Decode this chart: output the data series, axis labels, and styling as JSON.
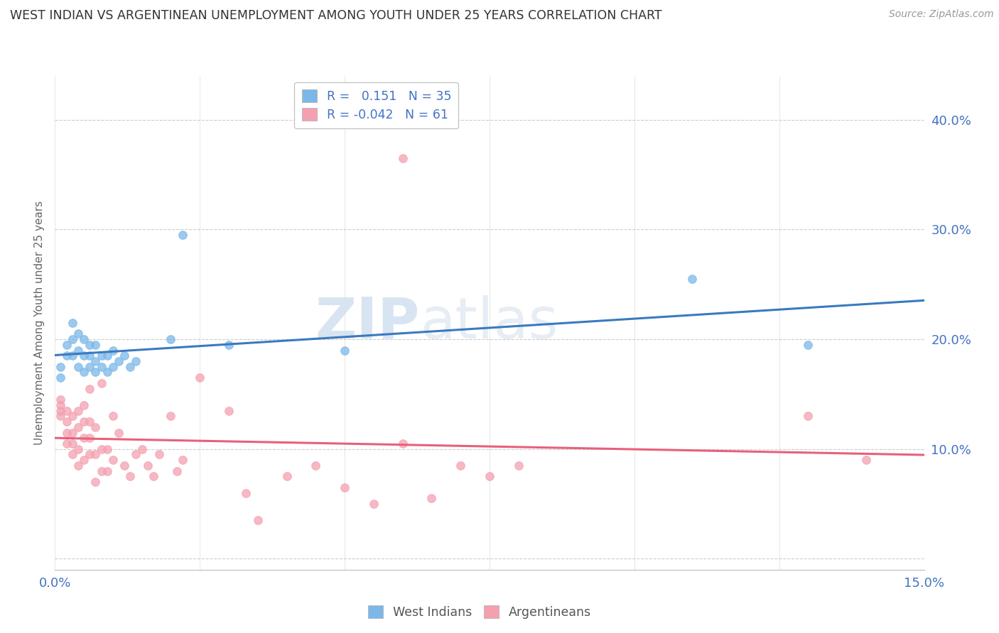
{
  "title": "WEST INDIAN VS ARGENTINEAN UNEMPLOYMENT AMONG YOUTH UNDER 25 YEARS CORRELATION CHART",
  "source": "Source: ZipAtlas.com",
  "ylabel": "Unemployment Among Youth under 25 years",
  "xlim": [
    0.0,
    0.15
  ],
  "ylim": [
    -0.01,
    0.44
  ],
  "xticks": [
    0.0,
    0.025,
    0.05,
    0.075,
    0.1,
    0.125,
    0.15
  ],
  "xticklabels": [
    "0.0%",
    "",
    "",
    "",
    "",
    "",
    "15.0%"
  ],
  "yticks": [
    0.0,
    0.1,
    0.2,
    0.3,
    0.4
  ],
  "yticklabels": [
    "",
    "10.0%",
    "20.0%",
    "30.0%",
    "40.0%"
  ],
  "blue_color": "#7bb8e8",
  "pink_color": "#f4a0b0",
  "blue_line_color": "#3a7abf",
  "pink_line_color": "#e8607a",
  "watermark_zip": "ZIP",
  "watermark_atlas": "atlas",
  "west_indians_x": [
    0.001,
    0.001,
    0.002,
    0.002,
    0.003,
    0.003,
    0.003,
    0.004,
    0.004,
    0.004,
    0.005,
    0.005,
    0.005,
    0.006,
    0.006,
    0.006,
    0.007,
    0.007,
    0.007,
    0.008,
    0.008,
    0.009,
    0.009,
    0.01,
    0.01,
    0.011,
    0.012,
    0.013,
    0.014,
    0.02,
    0.022,
    0.03,
    0.05,
    0.11,
    0.13
  ],
  "west_indians_y": [
    0.165,
    0.175,
    0.185,
    0.195,
    0.185,
    0.2,
    0.215,
    0.175,
    0.19,
    0.205,
    0.17,
    0.185,
    0.2,
    0.175,
    0.185,
    0.195,
    0.17,
    0.18,
    0.195,
    0.175,
    0.185,
    0.17,
    0.185,
    0.175,
    0.19,
    0.18,
    0.185,
    0.175,
    0.18,
    0.2,
    0.295,
    0.195,
    0.19,
    0.255,
    0.195
  ],
  "argentineans_x": [
    0.001,
    0.001,
    0.001,
    0.001,
    0.002,
    0.002,
    0.002,
    0.002,
    0.003,
    0.003,
    0.003,
    0.003,
    0.004,
    0.004,
    0.004,
    0.004,
    0.005,
    0.005,
    0.005,
    0.005,
    0.006,
    0.006,
    0.006,
    0.006,
    0.007,
    0.007,
    0.007,
    0.008,
    0.008,
    0.008,
    0.009,
    0.009,
    0.01,
    0.01,
    0.011,
    0.012,
    0.013,
    0.014,
    0.015,
    0.016,
    0.017,
    0.018,
    0.02,
    0.021,
    0.022,
    0.025,
    0.03,
    0.033,
    0.035,
    0.04,
    0.045,
    0.05,
    0.055,
    0.06,
    0.06,
    0.065,
    0.07,
    0.075,
    0.08,
    0.13,
    0.14
  ],
  "argentineans_y": [
    0.13,
    0.135,
    0.14,
    0.145,
    0.105,
    0.115,
    0.125,
    0.135,
    0.095,
    0.105,
    0.115,
    0.13,
    0.085,
    0.1,
    0.12,
    0.135,
    0.09,
    0.11,
    0.125,
    0.14,
    0.095,
    0.11,
    0.125,
    0.155,
    0.07,
    0.095,
    0.12,
    0.08,
    0.1,
    0.16,
    0.08,
    0.1,
    0.09,
    0.13,
    0.115,
    0.085,
    0.075,
    0.095,
    0.1,
    0.085,
    0.075,
    0.095,
    0.13,
    0.08,
    0.09,
    0.165,
    0.135,
    0.06,
    0.035,
    0.075,
    0.085,
    0.065,
    0.05,
    0.365,
    0.105,
    0.055,
    0.085,
    0.075,
    0.085,
    0.13,
    0.09
  ]
}
